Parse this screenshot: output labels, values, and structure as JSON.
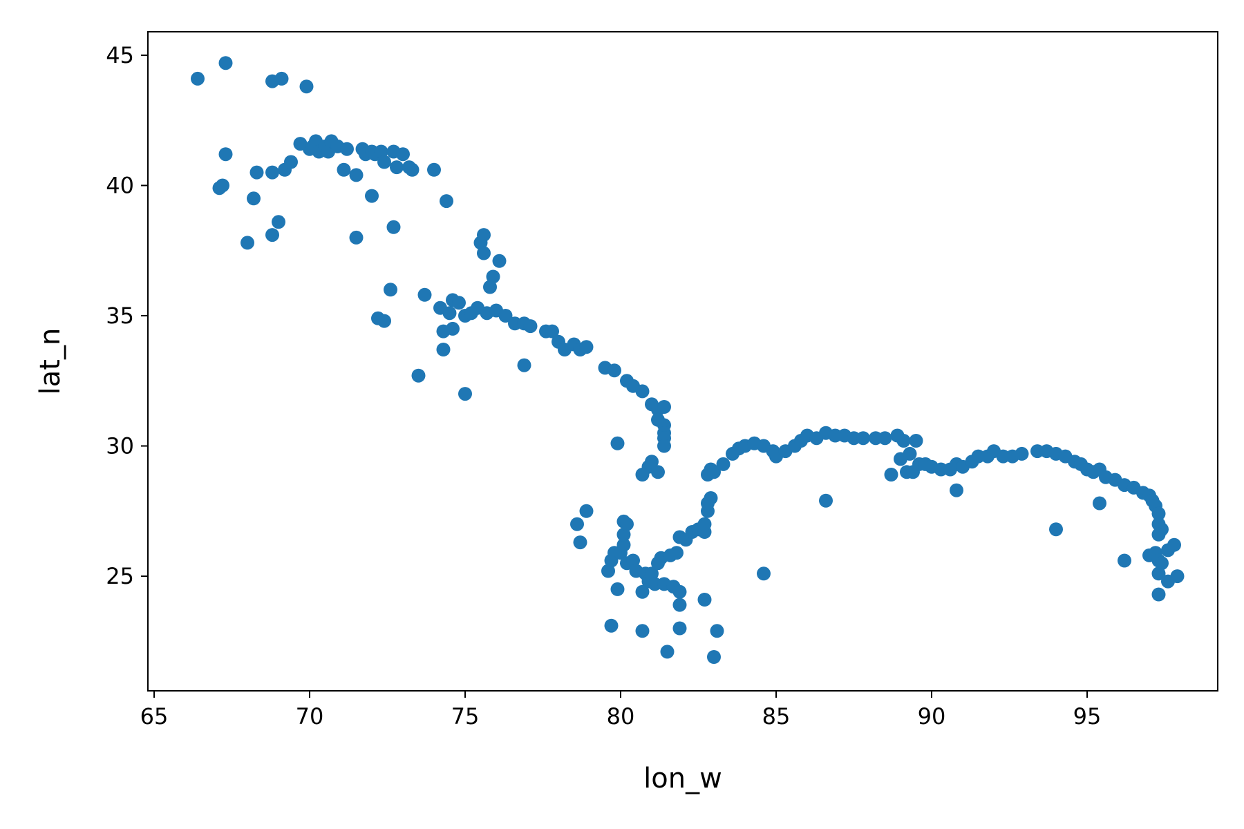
{
  "chart_data": {
    "type": "scatter",
    "xlabel": "lon_w",
    "ylabel": "lat_n",
    "xlim": [
      64.8,
      99.2
    ],
    "ylim": [
      20.6,
      45.9
    ],
    "x_ticks": [
      65,
      70,
      75,
      80,
      85,
      90,
      95
    ],
    "y_ticks": [
      25,
      30,
      35,
      40,
      45
    ],
    "grid": false,
    "legend": "none",
    "color": "#1f77b4",
    "points": [
      [
        66.4,
        44.1
      ],
      [
        67.3,
        44.7
      ],
      [
        68.8,
        44.0
      ],
      [
        69.1,
        44.1
      ],
      [
        69.9,
        43.8
      ],
      [
        67.1,
        39.9
      ],
      [
        67.2,
        40.0
      ],
      [
        67.3,
        41.2
      ],
      [
        68.0,
        37.8
      ],
      [
        68.2,
        39.5
      ],
      [
        68.3,
        40.5
      ],
      [
        68.8,
        40.5
      ],
      [
        68.8,
        38.1
      ],
      [
        69.0,
        38.6
      ],
      [
        69.2,
        40.6
      ],
      [
        69.4,
        40.9
      ],
      [
        69.7,
        41.6
      ],
      [
        70.0,
        41.4
      ],
      [
        70.1,
        41.5
      ],
      [
        70.2,
        41.7
      ],
      [
        70.3,
        41.3
      ],
      [
        70.5,
        41.5
      ],
      [
        70.6,
        41.3
      ],
      [
        70.7,
        41.7
      ],
      [
        70.9,
        41.5
      ],
      [
        71.1,
        40.6
      ],
      [
        71.2,
        41.4
      ],
      [
        71.5,
        40.4
      ],
      [
        71.7,
        41.4
      ],
      [
        71.8,
        41.2
      ],
      [
        72.0,
        41.3
      ],
      [
        72.1,
        41.2
      ],
      [
        72.3,
        41.3
      ],
      [
        72.4,
        40.9
      ],
      [
        72.7,
        41.3
      ],
      [
        72.8,
        40.7
      ],
      [
        73.0,
        41.2
      ],
      [
        73.2,
        40.7
      ],
      [
        73.3,
        40.6
      ],
      [
        74.0,
        40.6
      ],
      [
        71.5,
        38.0
      ],
      [
        72.0,
        39.6
      ],
      [
        72.2,
        34.9
      ],
      [
        72.4,
        34.8
      ],
      [
        72.6,
        36.0
      ],
      [
        72.7,
        38.4
      ],
      [
        73.5,
        32.7
      ],
      [
        73.7,
        35.8
      ],
      [
        74.2,
        35.3
      ],
      [
        74.3,
        34.4
      ],
      [
        74.3,
        33.7
      ],
      [
        74.4,
        39.4
      ],
      [
        74.5,
        35.1
      ],
      [
        74.6,
        35.6
      ],
      [
        74.8,
        35.5
      ],
      [
        74.6,
        34.5
      ],
      [
        75.0,
        32.0
      ],
      [
        75.0,
        35.0
      ],
      [
        75.2,
        35.1
      ],
      [
        75.4,
        35.3
      ],
      [
        75.5,
        37.8
      ],
      [
        75.6,
        38.1
      ],
      [
        75.6,
        37.4
      ],
      [
        75.7,
        35.1
      ],
      [
        75.8,
        36.1
      ],
      [
        75.9,
        36.5
      ],
      [
        76.0,
        35.2
      ],
      [
        76.1,
        37.1
      ],
      [
        76.3,
        35.0
      ],
      [
        76.6,
        34.7
      ],
      [
        76.9,
        34.7
      ],
      [
        77.1,
        34.6
      ],
      [
        76.9,
        33.1
      ],
      [
        77.6,
        34.4
      ],
      [
        77.8,
        34.4
      ],
      [
        78.0,
        34.0
      ],
      [
        78.2,
        33.7
      ],
      [
        78.5,
        33.9
      ],
      [
        78.7,
        33.7
      ],
      [
        78.9,
        33.8
      ],
      [
        79.5,
        33.0
      ],
      [
        79.8,
        32.9
      ],
      [
        80.2,
        32.5
      ],
      [
        80.4,
        32.3
      ],
      [
        80.7,
        32.1
      ],
      [
        81.0,
        31.6
      ],
      [
        81.2,
        31.4
      ],
      [
        81.4,
        31.5
      ],
      [
        81.2,
        31.0
      ],
      [
        81.4,
        30.8
      ],
      [
        81.4,
        30.5
      ],
      [
        81.4,
        30.3
      ],
      [
        81.4,
        30.0
      ],
      [
        80.9,
        29.2
      ],
      [
        80.7,
        28.9
      ],
      [
        81.0,
        29.4
      ],
      [
        81.2,
        29.0
      ],
      [
        79.9,
        30.1
      ],
      [
        78.6,
        27.0
      ],
      [
        78.7,
        26.3
      ],
      [
        78.9,
        27.5
      ],
      [
        79.6,
        25.2
      ],
      [
        79.7,
        25.6
      ],
      [
        79.8,
        25.9
      ],
      [
        79.7,
        23.1
      ],
      [
        79.9,
        24.5
      ],
      [
        80.0,
        25.9
      ],
      [
        80.1,
        26.2
      ],
      [
        80.1,
        26.6
      ],
      [
        80.1,
        27.1
      ],
      [
        80.2,
        27.0
      ],
      [
        80.2,
        25.5
      ],
      [
        80.4,
        25.6
      ],
      [
        80.5,
        25.2
      ],
      [
        80.7,
        24.4
      ],
      [
        80.7,
        22.9
      ],
      [
        80.8,
        25.1
      ],
      [
        80.9,
        24.8
      ],
      [
        81.0,
        25.1
      ],
      [
        81.1,
        24.7
      ],
      [
        81.2,
        25.5
      ],
      [
        81.3,
        25.7
      ],
      [
        81.4,
        24.7
      ],
      [
        81.5,
        22.1
      ],
      [
        81.6,
        25.8
      ],
      [
        81.7,
        24.6
      ],
      [
        81.8,
        25.9
      ],
      [
        81.9,
        24.4
      ],
      [
        81.9,
        23.9
      ],
      [
        81.9,
        23.0
      ],
      [
        81.9,
        26.5
      ],
      [
        82.1,
        26.4
      ],
      [
        82.3,
        26.7
      ],
      [
        82.5,
        26.8
      ],
      [
        82.7,
        26.7
      ],
      [
        82.7,
        24.1
      ],
      [
        82.7,
        27.0
      ],
      [
        82.8,
        27.5
      ],
      [
        82.8,
        27.8
      ],
      [
        82.9,
        28.0
      ],
      [
        82.8,
        28.9
      ],
      [
        82.9,
        29.1
      ],
      [
        83.0,
        21.9
      ],
      [
        83.1,
        22.9
      ],
      [
        83.0,
        29.0
      ],
      [
        83.3,
        29.3
      ],
      [
        83.6,
        29.7
      ],
      [
        83.8,
        29.9
      ],
      [
        84.0,
        30.0
      ],
      [
        84.3,
        30.1
      ],
      [
        84.6,
        30.0
      ],
      [
        84.6,
        25.1
      ],
      [
        84.9,
        29.8
      ],
      [
        85.0,
        29.6
      ],
      [
        85.3,
        29.8
      ],
      [
        85.6,
        30.0
      ],
      [
        85.8,
        30.2
      ],
      [
        86.0,
        30.4
      ],
      [
        86.3,
        30.3
      ],
      [
        86.6,
        30.5
      ],
      [
        86.6,
        27.9
      ],
      [
        86.9,
        30.4
      ],
      [
        87.2,
        30.4
      ],
      [
        87.5,
        30.3
      ],
      [
        87.8,
        30.3
      ],
      [
        88.2,
        30.3
      ],
      [
        88.5,
        30.3
      ],
      [
        88.7,
        28.9
      ],
      [
        88.9,
        30.4
      ],
      [
        89.0,
        29.5
      ],
      [
        89.1,
        30.2
      ],
      [
        89.2,
        29.0
      ],
      [
        89.3,
        29.7
      ],
      [
        89.4,
        29.0
      ],
      [
        89.5,
        30.2
      ],
      [
        89.6,
        29.3
      ],
      [
        89.8,
        29.3
      ],
      [
        90.0,
        29.2
      ],
      [
        90.3,
        29.1
      ],
      [
        90.6,
        29.1
      ],
      [
        90.8,
        29.3
      ],
      [
        90.8,
        28.3
      ],
      [
        91.0,
        29.2
      ],
      [
        91.3,
        29.4
      ],
      [
        91.5,
        29.6
      ],
      [
        91.8,
        29.6
      ],
      [
        92.0,
        29.8
      ],
      [
        92.3,
        29.6
      ],
      [
        92.6,
        29.6
      ],
      [
        92.9,
        29.7
      ],
      [
        93.4,
        29.8
      ],
      [
        93.7,
        29.8
      ],
      [
        94.0,
        29.7
      ],
      [
        94.3,
        29.6
      ],
      [
        94.0,
        26.8
      ],
      [
        94.6,
        29.4
      ],
      [
        94.8,
        29.3
      ],
      [
        95.0,
        29.1
      ],
      [
        95.2,
        29.0
      ],
      [
        95.4,
        29.1
      ],
      [
        95.4,
        27.8
      ],
      [
        95.6,
        28.8
      ],
      [
        95.9,
        28.7
      ],
      [
        96.2,
        28.5
      ],
      [
        96.2,
        25.6
      ],
      [
        96.5,
        28.4
      ],
      [
        96.8,
        28.2
      ],
      [
        97.0,
        28.1
      ],
      [
        97.1,
        27.9
      ],
      [
        97.2,
        27.7
      ],
      [
        97.3,
        27.4
      ],
      [
        97.3,
        27.0
      ],
      [
        97.4,
        26.8
      ],
      [
        97.3,
        26.6
      ],
      [
        97.0,
        25.8
      ],
      [
        97.2,
        25.9
      ],
      [
        97.3,
        25.6
      ],
      [
        97.3,
        25.1
      ],
      [
        97.3,
        24.3
      ],
      [
        97.4,
        25.5
      ],
      [
        97.6,
        26.0
      ],
      [
        97.6,
        24.8
      ],
      [
        97.8,
        26.2
      ],
      [
        97.9,
        25.0
      ]
    ]
  }
}
